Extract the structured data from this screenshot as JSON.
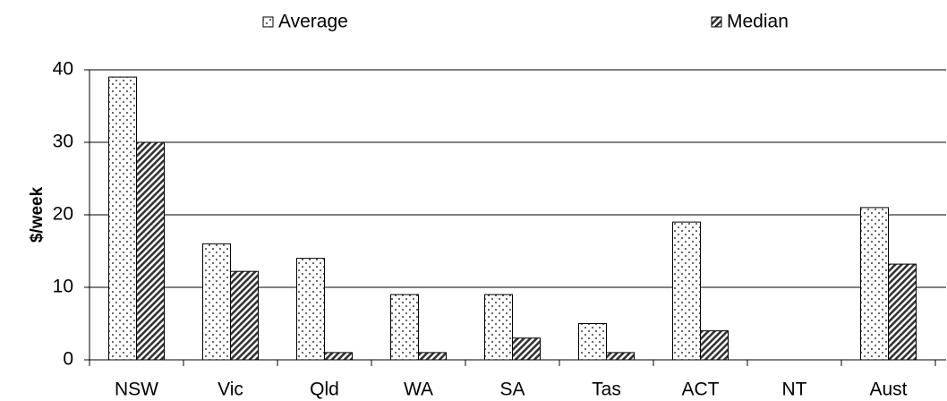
{
  "chart_data": {
    "type": "bar",
    "y_label": "$/week",
    "categories": [
      "NSW",
      "Vic",
      "Qld",
      "WA",
      "SA",
      "Tas",
      "ACT",
      "NT",
      "Aust"
    ],
    "series": [
      {
        "name": "Average",
        "color": "#000000",
        "pattern": "dots",
        "values": [
          39,
          16,
          14,
          9,
          9,
          5,
          19,
          null,
          21
        ]
      },
      {
        "name": "Median",
        "color": "#000000",
        "pattern": "hatch",
        "values": [
          30,
          12.2,
          1,
          1,
          3,
          1,
          4,
          null,
          13.2
        ]
      }
    ],
    "ylim": [
      0,
      40
    ],
    "yticks": [
      0,
      10,
      20,
      30,
      40
    ],
    "grid": true
  }
}
